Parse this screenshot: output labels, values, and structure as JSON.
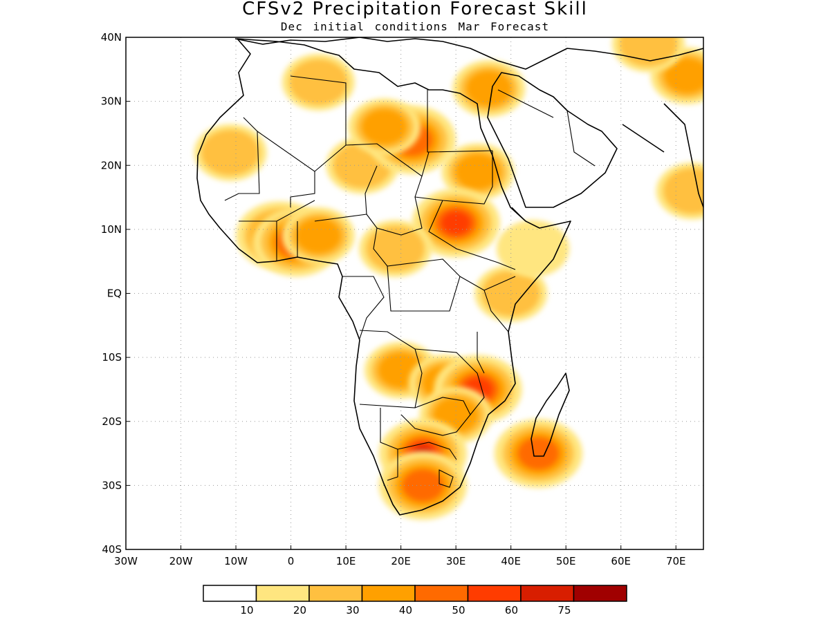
{
  "title": "CFSv2 Precipitation Forecast Skill",
  "subtitle": "Dec initial conditions  Mar Forecast",
  "axes": {
    "lon_ticks": [
      "30W",
      "20W",
      "10W",
      "0",
      "10E",
      "20E",
      "30E",
      "40E",
      "50E",
      "60E",
      "70E"
    ],
    "lat_ticks": [
      "40N",
      "30N",
      "20N",
      "10N",
      "EQ",
      "10S",
      "20S",
      "30S",
      "40S"
    ],
    "lon_range": [
      -30,
      75
    ],
    "lat_range": [
      -40,
      40
    ]
  },
  "colorbar": {
    "labels": [
      "10",
      "20",
      "30",
      "40",
      "50",
      "60",
      "75"
    ],
    "colors": [
      "#ffffff",
      "#ffe680",
      "#ffc040",
      "#ffa000",
      "#ff6a00",
      "#ff3c00",
      "#d81e00",
      "#a00000"
    ]
  },
  "map_features": {
    "projection": "lat-lon",
    "grid": "dotted",
    "coastlines": "black",
    "country_borders": "black"
  },
  "chart_data": {
    "type": "heatmap",
    "title": "CFSv2 Precipitation Forecast Skill",
    "subtitle": "Dec initial conditions  Mar Forecast",
    "levels": [
      10,
      20,
      30,
      40,
      50,
      60,
      75
    ],
    "regions": [
      {
        "lon": -11,
        "lat": 22,
        "level": 20
      },
      {
        "lon": -2,
        "lat": 9,
        "level": 50
      },
      {
        "lon": 1,
        "lat": 8,
        "level": 40
      },
      {
        "lon": 5,
        "lat": 9,
        "level": 30
      },
      {
        "lon": 13,
        "lat": 20,
        "level": 20
      },
      {
        "lon": 22,
        "lat": 24,
        "level": 40
      },
      {
        "lon": 17,
        "lat": 26,
        "level": 30
      },
      {
        "lon": 34,
        "lat": 19,
        "level": 30
      },
      {
        "lon": 30,
        "lat": 11,
        "level": 50
      },
      {
        "lon": 19,
        "lat": 7,
        "level": 20
      },
      {
        "lon": 40,
        "lat": 0,
        "level": 20
      },
      {
        "lon": 44,
        "lat": 7,
        "level": 10
      },
      {
        "lon": 20,
        "lat": -12,
        "level": 30
      },
      {
        "lon": 28,
        "lat": -14,
        "level": 30
      },
      {
        "lon": 34,
        "lat": -15,
        "level": 50
      },
      {
        "lon": 30,
        "lat": -19,
        "level": 30
      },
      {
        "lon": 24,
        "lat": -25,
        "level": 60
      },
      {
        "lon": 24,
        "lat": -30,
        "level": 40
      },
      {
        "lon": 45,
        "lat": -25,
        "level": 40
      },
      {
        "lon": 36,
        "lat": 32,
        "level": 30
      },
      {
        "lon": 5,
        "lat": 33,
        "level": 20
      },
      {
        "lon": 72,
        "lat": 34,
        "level": 30
      },
      {
        "lon": 73,
        "lat": 16,
        "level": 20
      },
      {
        "lon": 65,
        "lat": 39,
        "level": 20
      }
    ]
  }
}
